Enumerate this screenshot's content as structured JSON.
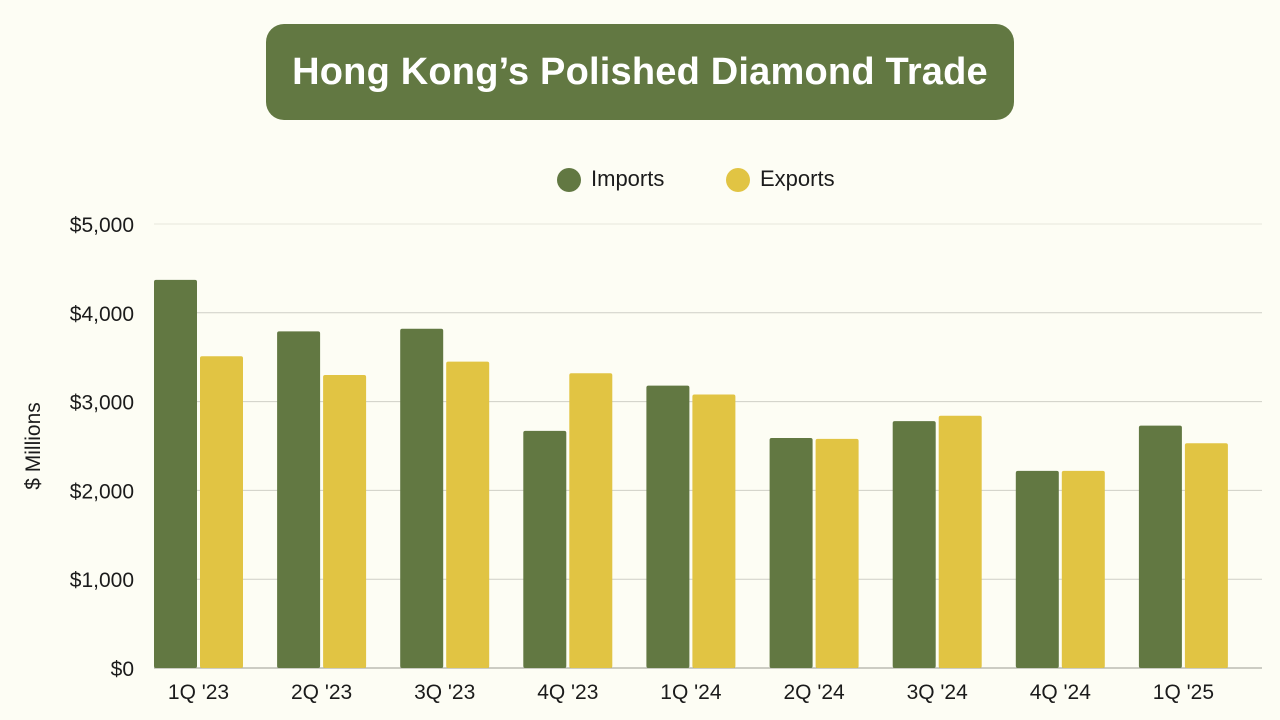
{
  "title": "Hong Kong’s Polished Diamond Trade",
  "colors": {
    "background": "#fdfdf4",
    "title_box": "#627842",
    "title_text": "#ffffff",
    "gridline": "#cfcfc6",
    "axis_text": "#1b1b1b"
  },
  "chart_data": {
    "type": "bar",
    "title": "Hong Kong’s Polished Diamond Trade",
    "xlabel": "",
    "ylabel": "$ Millions",
    "categories": [
      "1Q '23",
      "2Q '23",
      "3Q '23",
      "4Q '23",
      "1Q '24",
      "2Q '24",
      "3Q '24",
      "4Q '24",
      "1Q '25"
    ],
    "series": [
      {
        "name": "Imports",
        "color": "#627842",
        "values": [
          4370,
          3790,
          3820,
          2670,
          3180,
          2590,
          2780,
          2220,
          2730
        ]
      },
      {
        "name": "Exports",
        "color": "#e1c443",
        "values": [
          3510,
          3300,
          3450,
          3320,
          3080,
          2580,
          2840,
          2220,
          2530
        ]
      }
    ],
    "ylim": [
      0,
      5000
    ],
    "yticks": [
      0,
      1000,
      2000,
      3000,
      4000,
      5000
    ],
    "ytick_labels": [
      "$0",
      "$1,000",
      "$2,000",
      "$3,000",
      "$4,000",
      "$5,000"
    ],
    "grid": true,
    "legend_position": "top-center"
  }
}
